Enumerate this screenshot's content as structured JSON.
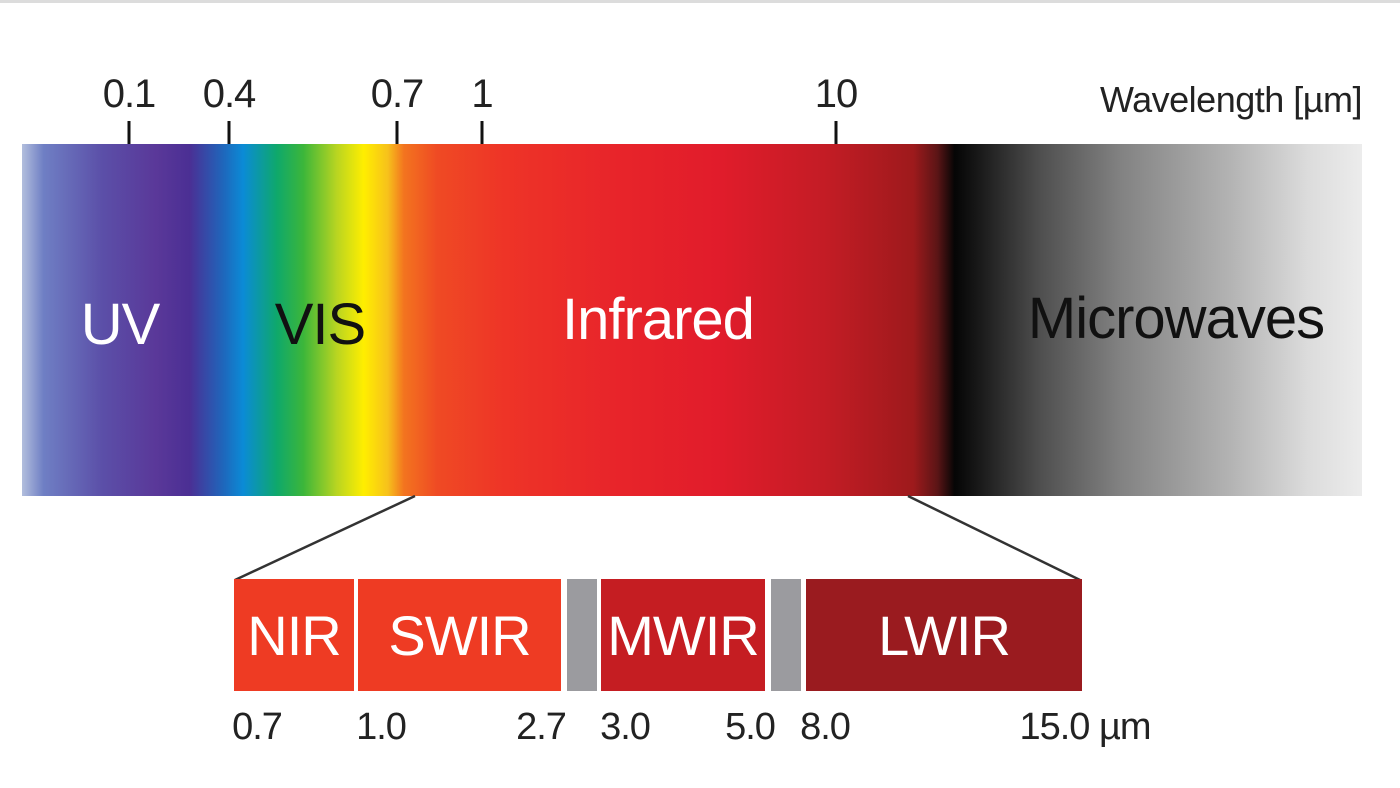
{
  "axis": {
    "title": "Wavelength [µm]",
    "ticks": [
      "0.1",
      "0.4",
      "0.7",
      "1",
      "10"
    ]
  },
  "regions": {
    "uv": {
      "label": "UV",
      "color": "#ffffff"
    },
    "vis": {
      "label": "VIS",
      "color": "#111111"
    },
    "infrared": {
      "label": "Infrared",
      "color": "#ffffff"
    },
    "microwaves": {
      "label": "Microwaves",
      "color": "#111111"
    }
  },
  "infrared_bands": [
    {
      "label": "NIR",
      "color": "#ee3b23"
    },
    {
      "label": "SWIR",
      "color": "#ee3b23"
    },
    {
      "label": "MWIR",
      "color": "#c51d22"
    },
    {
      "label": "LWIR",
      "color": "#9a1b1f"
    }
  ],
  "gap_color": "#9b9b9f",
  "band_boundaries": [
    "0.7",
    "1.0",
    "2.7",
    "3.0",
    "5.0",
    "8.0",
    "15.0 µm"
  ]
}
